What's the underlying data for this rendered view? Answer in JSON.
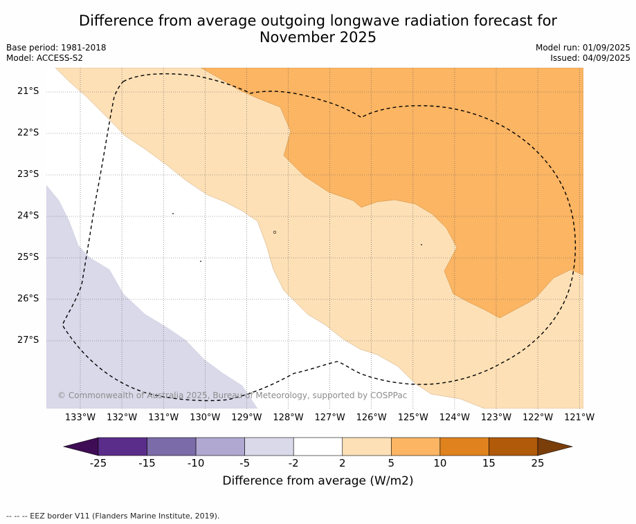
{
  "title_line1": "Difference from average outgoing longwave radiation forecast for",
  "title_line2": "November 2025",
  "base_period": "Base period: 1981-2018",
  "model": "Model: ACCESS-S2",
  "model_run": "Model run: 01/09/2025",
  "issued": "Issued: 04/09/2025",
  "lat_labels": [
    "21°S",
    "22°S",
    "23°S",
    "24°S",
    "25°S",
    "26°S",
    "27°S"
  ],
  "lon_labels": [
    "133°W",
    "132°W",
    "131°W",
    "130°W",
    "129°W",
    "128°W",
    "127°W",
    "126°W",
    "125°W",
    "124°W",
    "123°W",
    "122°W",
    "121°W"
  ],
  "credit": "© Commonwealth of Australia 2025, Bureau of Meteorology, supported by COSPPac",
  "colorbar": {
    "title": "Difference from average (W/m2)",
    "tick_labels": [
      "-25",
      "-15",
      "-10",
      "-5",
      "-2",
      "2",
      "5",
      "10",
      "15",
      "25"
    ],
    "colors": [
      "#3f0d55",
      "#5a2d8a",
      "#7b6ba8",
      "#b0a8d0",
      "#d9d9ea",
      "#ffffff",
      "#fde0b6",
      "#fbb563",
      "#e0821e",
      "#b05a0a",
      "#7a3e0b"
    ]
  },
  "footnote": "--  --  -- EEZ border V11 (Flanders Marine Institute, 2019)."
}
